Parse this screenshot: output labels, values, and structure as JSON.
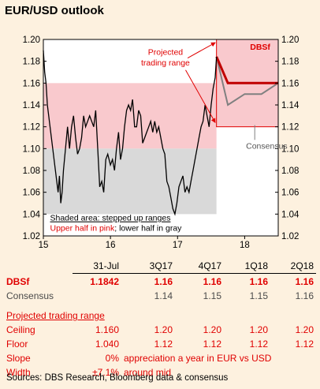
{
  "title": "EUR/USD outlook",
  "colors": {
    "background": "#fdf1df",
    "upper_band": "#f9c9cd",
    "lower_band": "#d9d9d9",
    "price_line": "#000000",
    "dbs_forecast": "#c00000",
    "consensus": "#808080",
    "annotation_red": "#e00000"
  },
  "chart_data": {
    "type": "line",
    "xlabel": "",
    "ylabel": "",
    "x_tick_labels": [
      "15",
      "16",
      "17",
      "18"
    ],
    "x_ticks": [
      2015,
      2016,
      2017,
      2018
    ],
    "xlim": [
      2015.0,
      2018.5
    ],
    "ylim": [
      1.02,
      1.2
    ],
    "y_ticks": [
      1.02,
      1.04,
      1.06,
      1.08,
      1.1,
      1.12,
      1.14,
      1.16,
      1.18,
      1.2
    ],
    "y_tick_labels": [
      "1.02",
      "1.04",
      "1.06",
      "1.08",
      "1.10",
      "1.12",
      "1.14",
      "1.16",
      "1.18",
      "1.20"
    ],
    "grid": false,
    "bands": [
      {
        "from_x": 2015.0,
        "to_x": 2017.58,
        "y_low": 1.1,
        "y_high": 1.16,
        "color": "pink"
      },
      {
        "from_x": 2015.0,
        "to_x": 2017.58,
        "y_low": 1.04,
        "y_high": 1.1,
        "color": "gray"
      },
      {
        "from_x": 2017.58,
        "to_x": 2018.5,
        "y_low": 1.12,
        "y_high": 1.2,
        "color": "pink"
      }
    ],
    "series": [
      {
        "role": "spot",
        "points": [
          [
            2015.0,
            1.19
          ],
          [
            2015.02,
            1.17
          ],
          [
            2015.04,
            1.16
          ],
          [
            2015.06,
            1.14
          ],
          [
            2015.08,
            1.13
          ],
          [
            2015.1,
            1.12
          ],
          [
            2015.12,
            1.11
          ],
          [
            2015.14,
            1.1
          ],
          [
            2015.16,
            1.09
          ],
          [
            2015.18,
            1.08
          ],
          [
            2015.2,
            1.07
          ],
          [
            2015.22,
            1.06
          ],
          [
            2015.24,
            1.075
          ],
          [
            2015.26,
            1.05
          ],
          [
            2015.28,
            1.06
          ],
          [
            2015.3,
            1.08
          ],
          [
            2015.33,
            1.1
          ],
          [
            2015.36,
            1.12
          ],
          [
            2015.39,
            1.1
          ],
          [
            2015.42,
            1.12
          ],
          [
            2015.45,
            1.13
          ],
          [
            2015.48,
            1.11
          ],
          [
            2015.51,
            1.095
          ],
          [
            2015.54,
            1.1
          ],
          [
            2015.57,
            1.11
          ],
          [
            2015.6,
            1.13
          ],
          [
            2015.63,
            1.12
          ],
          [
            2015.66,
            1.125
          ],
          [
            2015.69,
            1.13
          ],
          [
            2015.72,
            1.125
          ],
          [
            2015.75,
            1.12
          ],
          [
            2015.78,
            1.135
          ],
          [
            2015.81,
            1.1
          ],
          [
            2015.84,
            1.065
          ],
          [
            2015.87,
            1.07
          ],
          [
            2015.9,
            1.06
          ],
          [
            2015.93,
            1.09
          ],
          [
            2015.96,
            1.095
          ],
          [
            2016.0,
            1.085
          ],
          [
            2016.03,
            1.09
          ],
          [
            2016.06,
            1.08
          ],
          [
            2016.09,
            1.1
          ],
          [
            2016.12,
            1.115
          ],
          [
            2016.15,
            1.09
          ],
          [
            2016.18,
            1.1
          ],
          [
            2016.21,
            1.12
          ],
          [
            2016.24,
            1.135
          ],
          [
            2016.27,
            1.14
          ],
          [
            2016.3,
            1.135
          ],
          [
            2016.33,
            1.145
          ],
          [
            2016.36,
            1.12
          ],
          [
            2016.39,
            1.12
          ],
          [
            2016.42,
            1.135
          ],
          [
            2016.45,
            1.13
          ],
          [
            2016.48,
            1.105
          ],
          [
            2016.51,
            1.11
          ],
          [
            2016.54,
            1.115
          ],
          [
            2016.57,
            1.12
          ],
          [
            2016.6,
            1.125
          ],
          [
            2016.63,
            1.115
          ],
          [
            2016.66,
            1.125
          ],
          [
            2016.69,
            1.115
          ],
          [
            2016.72,
            1.12
          ],
          [
            2016.75,
            1.11
          ],
          [
            2016.78,
            1.1
          ],
          [
            2016.81,
            1.095
          ],
          [
            2016.84,
            1.07
          ],
          [
            2016.87,
            1.065
          ],
          [
            2016.9,
            1.055
          ],
          [
            2016.93,
            1.045
          ],
          [
            2016.96,
            1.04
          ],
          [
            2016.99,
            1.05
          ],
          [
            2017.02,
            1.065
          ],
          [
            2017.05,
            1.07
          ],
          [
            2017.08,
            1.075
          ],
          [
            2017.11,
            1.06
          ],
          [
            2017.14,
            1.065
          ],
          [
            2017.17,
            1.06
          ],
          [
            2017.2,
            1.07
          ],
          [
            2017.23,
            1.08
          ],
          [
            2017.26,
            1.09
          ],
          [
            2017.29,
            1.1
          ],
          [
            2017.32,
            1.11
          ],
          [
            2017.35,
            1.12
          ],
          [
            2017.38,
            1.125
          ],
          [
            2017.41,
            1.14
          ],
          [
            2017.44,
            1.13
          ],
          [
            2017.47,
            1.12
          ],
          [
            2017.5,
            1.14
          ],
          [
            2017.53,
            1.155
          ],
          [
            2017.56,
            1.165
          ],
          [
            2017.58,
            1.1842
          ]
        ]
      },
      {
        "name": "DBSf",
        "points": [
          [
            2017.58,
            1.1842
          ],
          [
            2017.75,
            1.16
          ],
          [
            2018.0,
            1.16
          ],
          [
            2018.25,
            1.16
          ],
          [
            2018.5,
            1.16
          ]
        ]
      },
      {
        "name": "Consensus",
        "points": [
          [
            2017.58,
            1.1842
          ],
          [
            2017.75,
            1.14
          ],
          [
            2018.0,
            1.15
          ],
          [
            2018.25,
            1.15
          ],
          [
            2018.5,
            1.16
          ]
        ]
      }
    ],
    "annotations": {
      "dbsf_label": "DBSf",
      "consensus_label": "Consensus",
      "projected_label_line1": "Projected",
      "projected_label_line2": "trading range",
      "legend_line1": "Shaded area: stepped up ranges",
      "legend_line2_red": "Upper half in pink",
      "legend_line2_sep": "; ",
      "legend_line2_black": "lower half in gray"
    }
  },
  "table": {
    "header": [
      "31-Jul",
      "3Q17",
      "4Q17",
      "1Q18",
      "2Q18"
    ],
    "dbsf": {
      "label": "DBSf",
      "values": [
        "1.1842",
        "1.16",
        "1.16",
        "1.16",
        "1.16"
      ]
    },
    "consensus": {
      "label": "Consensus",
      "values": [
        "",
        "1.14",
        "1.15",
        "1.15",
        "1.16"
      ]
    },
    "range_heading": "Projected trading range",
    "ceiling": {
      "label": "Ceiling",
      "values": [
        "1.160",
        "1.20",
        "1.20",
        "1.20",
        "1.20"
      ]
    },
    "floor": {
      "label": "Floor",
      "values": [
        "1.040",
        "1.12",
        "1.12",
        "1.12",
        "1.12"
      ]
    },
    "slope": {
      "label": "Slope",
      "value": "0%",
      "desc": "appreciation a year in EUR vs USD"
    },
    "width": {
      "label": "Width",
      "value": "±7.1%",
      "desc": "around mid"
    }
  },
  "source": "Sources: DBS Research, Bloomberg data & consensus"
}
